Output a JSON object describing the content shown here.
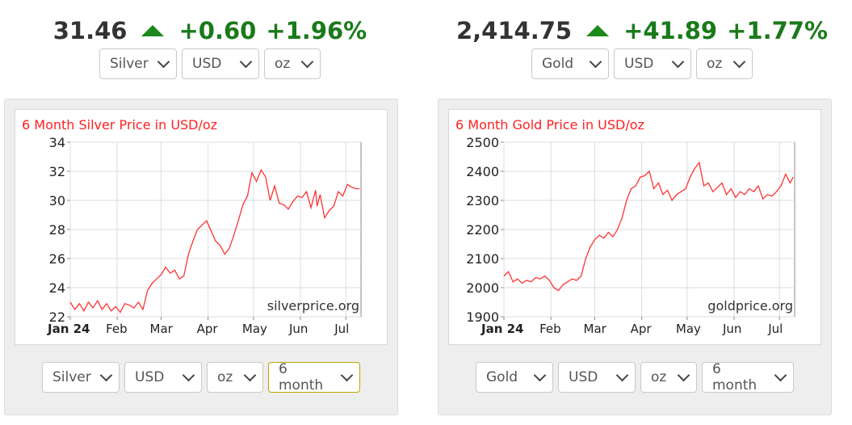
{
  "silver": {
    "quote": {
      "price": "31.46",
      "change": "+0.60",
      "percent": "+1.96%"
    },
    "top_selects": {
      "metal": "Silver",
      "currency": "USD",
      "unit": "oz"
    },
    "bottom_selects": {
      "metal": "Silver",
      "currency": "USD",
      "unit": "oz",
      "period": "6 month"
    },
    "watermark": "silverprice.org",
    "chart_data": {
      "type": "line",
      "title": "6 Month Silver Price in USD/oz",
      "ylim": [
        22,
        34
      ],
      "yticks": [
        "22",
        "24",
        "26",
        "28",
        "30",
        "32",
        "34"
      ],
      "xticks": [
        {
          "label": "Jan 24",
          "x": 0
        },
        {
          "label": "Feb",
          "x": 31
        },
        {
          "label": "Mar",
          "x": 60
        },
        {
          "label": "Apr",
          "x": 91
        },
        {
          "label": "May",
          "x": 121
        },
        {
          "label": "Jun",
          "x": 152
        },
        {
          "label": "Jul",
          "x": 182
        }
      ],
      "xmax": 192,
      "grid": true,
      "series": [
        {
          "color": "#ff3333",
          "x": [
            0,
            3,
            6,
            9,
            12,
            15,
            18,
            21,
            24,
            27,
            30,
            33,
            36,
            39,
            42,
            45,
            48,
            51,
            54,
            57,
            60,
            63,
            66,
            69,
            72,
            75,
            78,
            81,
            84,
            87,
            90,
            93,
            96,
            99,
            102,
            105,
            108,
            111,
            114,
            117,
            120,
            123,
            126,
            129,
            132,
            135,
            138,
            141,
            144,
            147,
            150,
            153,
            156,
            159,
            162,
            163,
            165,
            168,
            171,
            174,
            177,
            180,
            183,
            186,
            189,
            191
          ],
          "values": [
            23.0,
            22.5,
            22.9,
            22.4,
            23.0,
            22.6,
            23.1,
            22.5,
            22.9,
            22.4,
            22.7,
            22.3,
            22.9,
            22.8,
            22.6,
            23.0,
            22.5,
            23.8,
            24.3,
            24.6,
            24.9,
            25.4,
            25.0,
            25.2,
            24.6,
            24.8,
            26.3,
            27.2,
            28.0,
            28.3,
            28.6,
            27.9,
            27.2,
            26.9,
            26.3,
            26.7,
            27.6,
            28.6,
            29.7,
            30.3,
            31.9,
            31.3,
            32.1,
            31.6,
            30.0,
            31.0,
            29.8,
            29.7,
            29.4,
            29.9,
            30.3,
            30.2,
            30.6,
            29.5,
            30.7,
            29.6,
            30.4,
            28.8,
            29.3,
            29.6,
            30.6,
            30.3,
            31.1,
            30.9,
            30.8,
            30.8
          ]
        }
      ]
    }
  },
  "gold": {
    "quote": {
      "price": "2,414.75",
      "change": "+41.89",
      "percent": "+1.77%"
    },
    "top_selects": {
      "metal": "Gold",
      "currency": "USD",
      "unit": "oz"
    },
    "bottom_selects": {
      "metal": "Gold",
      "currency": "USD",
      "unit": "oz",
      "period": "6 month"
    },
    "watermark": "goldprice.org",
    "chart_data": {
      "type": "line",
      "title": "6 Month Gold Price in USD/oz",
      "ylim": [
        1900,
        2500
      ],
      "yticks": [
        "1900",
        "2000",
        "2100",
        "2200",
        "2300",
        "2400",
        "2500"
      ],
      "xticks": [
        {
          "label": "Jan 24",
          "x": 0
        },
        {
          "label": "Feb",
          "x": 31
        },
        {
          "label": "Mar",
          "x": 60
        },
        {
          "label": "Apr",
          "x": 91
        },
        {
          "label": "May",
          "x": 121
        },
        {
          "label": "Jun",
          "x": 152
        },
        {
          "label": "Jul",
          "x": 182
        }
      ],
      "xmax": 192,
      "grid": true,
      "series": [
        {
          "color": "#ff3333",
          "x": [
            0,
            3,
            6,
            9,
            12,
            15,
            18,
            21,
            24,
            27,
            30,
            33,
            36,
            39,
            42,
            45,
            48,
            51,
            54,
            57,
            60,
            63,
            66,
            69,
            72,
            75,
            78,
            81,
            84,
            87,
            90,
            93,
            96,
            99,
            102,
            105,
            108,
            111,
            114,
            117,
            120,
            123,
            126,
            129,
            132,
            135,
            138,
            141,
            144,
            147,
            150,
            153,
            156,
            159,
            162,
            165,
            168,
            171,
            174,
            177,
            180,
            183,
            186,
            189,
            191
          ],
          "values": [
            2040,
            2055,
            2020,
            2030,
            2015,
            2025,
            2020,
            2035,
            2030,
            2040,
            2025,
            2000,
            1990,
            2010,
            2020,
            2030,
            2025,
            2040,
            2100,
            2140,
            2165,
            2180,
            2170,
            2190,
            2175,
            2200,
            2240,
            2300,
            2340,
            2350,
            2380,
            2385,
            2400,
            2340,
            2360,
            2320,
            2335,
            2300,
            2320,
            2330,
            2340,
            2380,
            2410,
            2430,
            2350,
            2360,
            2330,
            2345,
            2360,
            2320,
            2340,
            2310,
            2330,
            2320,
            2340,
            2330,
            2350,
            2305,
            2320,
            2315,
            2330,
            2350,
            2390,
            2360,
            2380
          ]
        }
      ]
    }
  }
}
